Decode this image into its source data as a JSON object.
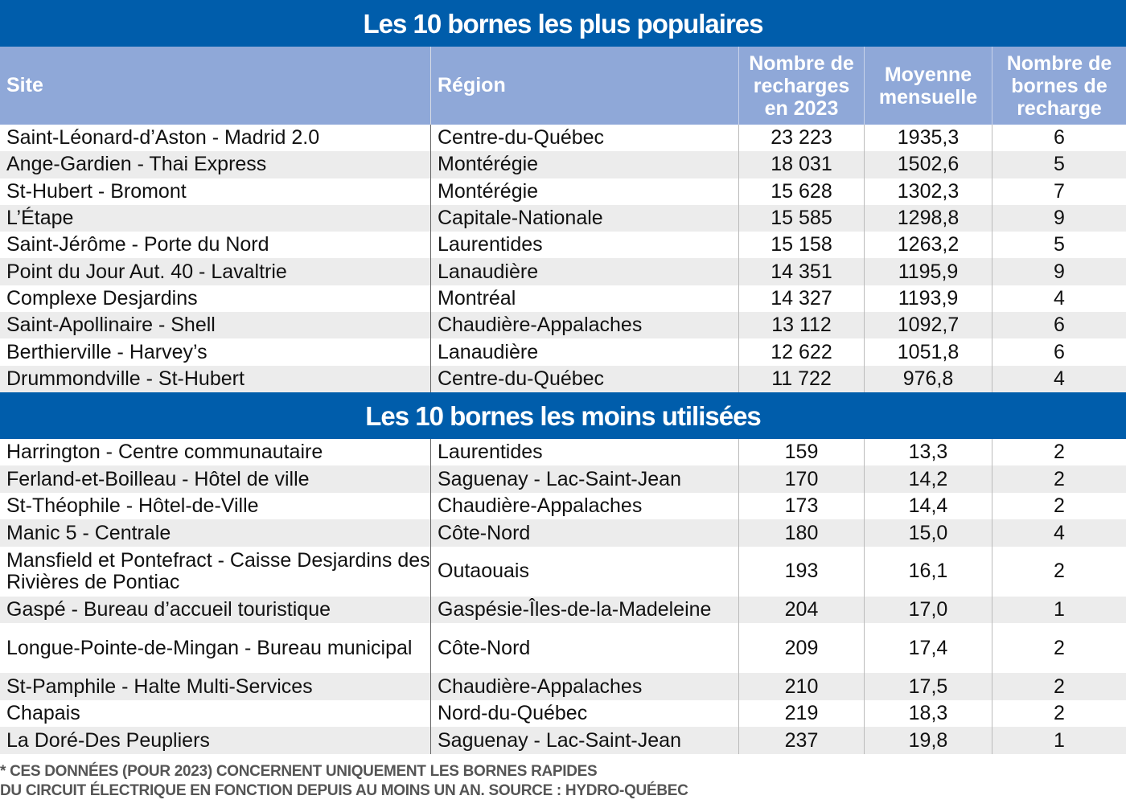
{
  "chart_data": {
    "type": "table",
    "columns": [
      "Site",
      "Région",
      "Nombre de recharges en 2023",
      "Moyenne mensuelle",
      "Nombre de bornes de recharge"
    ],
    "sections": [
      {
        "title": "Les 10 bornes les plus populaires",
        "rows": [
          [
            "Saint-Léonard-d’Aston - Madrid 2.0",
            "Centre-du-Québec",
            "23 223",
            "1935,3",
            "6"
          ],
          [
            "Ange-Gardien - Thai Express",
            "Montérégie",
            "18 031",
            "1502,6",
            "5"
          ],
          [
            "St-Hubert - Bromont",
            "Montérégie",
            "15 628",
            "1302,3",
            "7"
          ],
          [
            "L’Étape",
            "Capitale-Nationale",
            "15 585",
            "1298,8",
            "9"
          ],
          [
            "Saint-Jérôme - Porte du Nord",
            "Laurentides",
            "15 158",
            "1263,2",
            "5"
          ],
          [
            "Point du Jour Aut. 40 - Lavaltrie",
            "Lanaudière",
            "14 351",
            "1195,9",
            "9"
          ],
          [
            "Complexe Desjardins",
            "Montréal",
            "14 327",
            "1193,9",
            "4"
          ],
          [
            "Saint-Apollinaire - Shell",
            "Chaudière-Appalaches",
            "13 112",
            "1092,7",
            "6"
          ],
          [
            "Berthierville - Harvey’s",
            "Lanaudière",
            "12 622",
            "1051,8",
            "6"
          ],
          [
            "Drummondville - St-Hubert",
            "Centre-du-Québec",
            "11 722",
            "976,8",
            "4"
          ]
        ]
      },
      {
        "title": "Les 10 bornes les moins utilisées",
        "rows": [
          [
            "Harrington - Centre communautaire",
            "Laurentides",
            "159",
            "13,3",
            "2"
          ],
          [
            "Ferland-et-Boilleau - Hôtel de ville",
            "Saguenay - Lac-Saint-Jean",
            "170",
            "14,2",
            "2"
          ],
          [
            "St-Théophile -  Hôtel-de-Ville",
            "Chaudière-Appalaches",
            "173",
            "14,4",
            "2"
          ],
          [
            "Manic 5 - Centrale",
            "Côte-Nord",
            "180",
            "15,0",
            "4"
          ],
          [
            "Mansfield et Pontefract - Caisse Desjardins des Rivières de Pontiac",
            "Outaouais",
            "193",
            "16,1",
            "2"
          ],
          [
            "Gaspé - Bureau d’accueil touristique",
            "Gaspésie-Îles-de-la-Madeleine",
            "204",
            "17,0",
            "1"
          ],
          [
            "Longue-Pointe-de-Mingan - Bureau municipal",
            "Côte-Nord",
            "209",
            "17,4",
            "2"
          ],
          [
            "St-Pamphile - Halte Multi-Services",
            "Chaudière-Appalaches",
            "210",
            "17,5",
            "2"
          ],
          [
            "Chapais",
            "Nord-du-Québec",
            "219",
            "18,3",
            "2"
          ],
          [
            "La Doré-Des Peupliers",
            "Saguenay - Lac-Saint-Jean",
            "237",
            "19,8",
            "1"
          ]
        ]
      }
    ],
    "footnote": [
      "* CES DONNÉES (POUR 2023) CONCERNENT UNIQUEMENT LES BORNES RAPIDES",
      "DU CIRCUIT ÉLECTRIQUE EN FONCTION DEPUIS AU MOINS UN AN. SOURCE : HYDRO-QUÉBEC"
    ],
    "colors": {
      "banner": "#005dab",
      "header": "#8fa8d8",
      "row_alt": "#ececec"
    }
  }
}
